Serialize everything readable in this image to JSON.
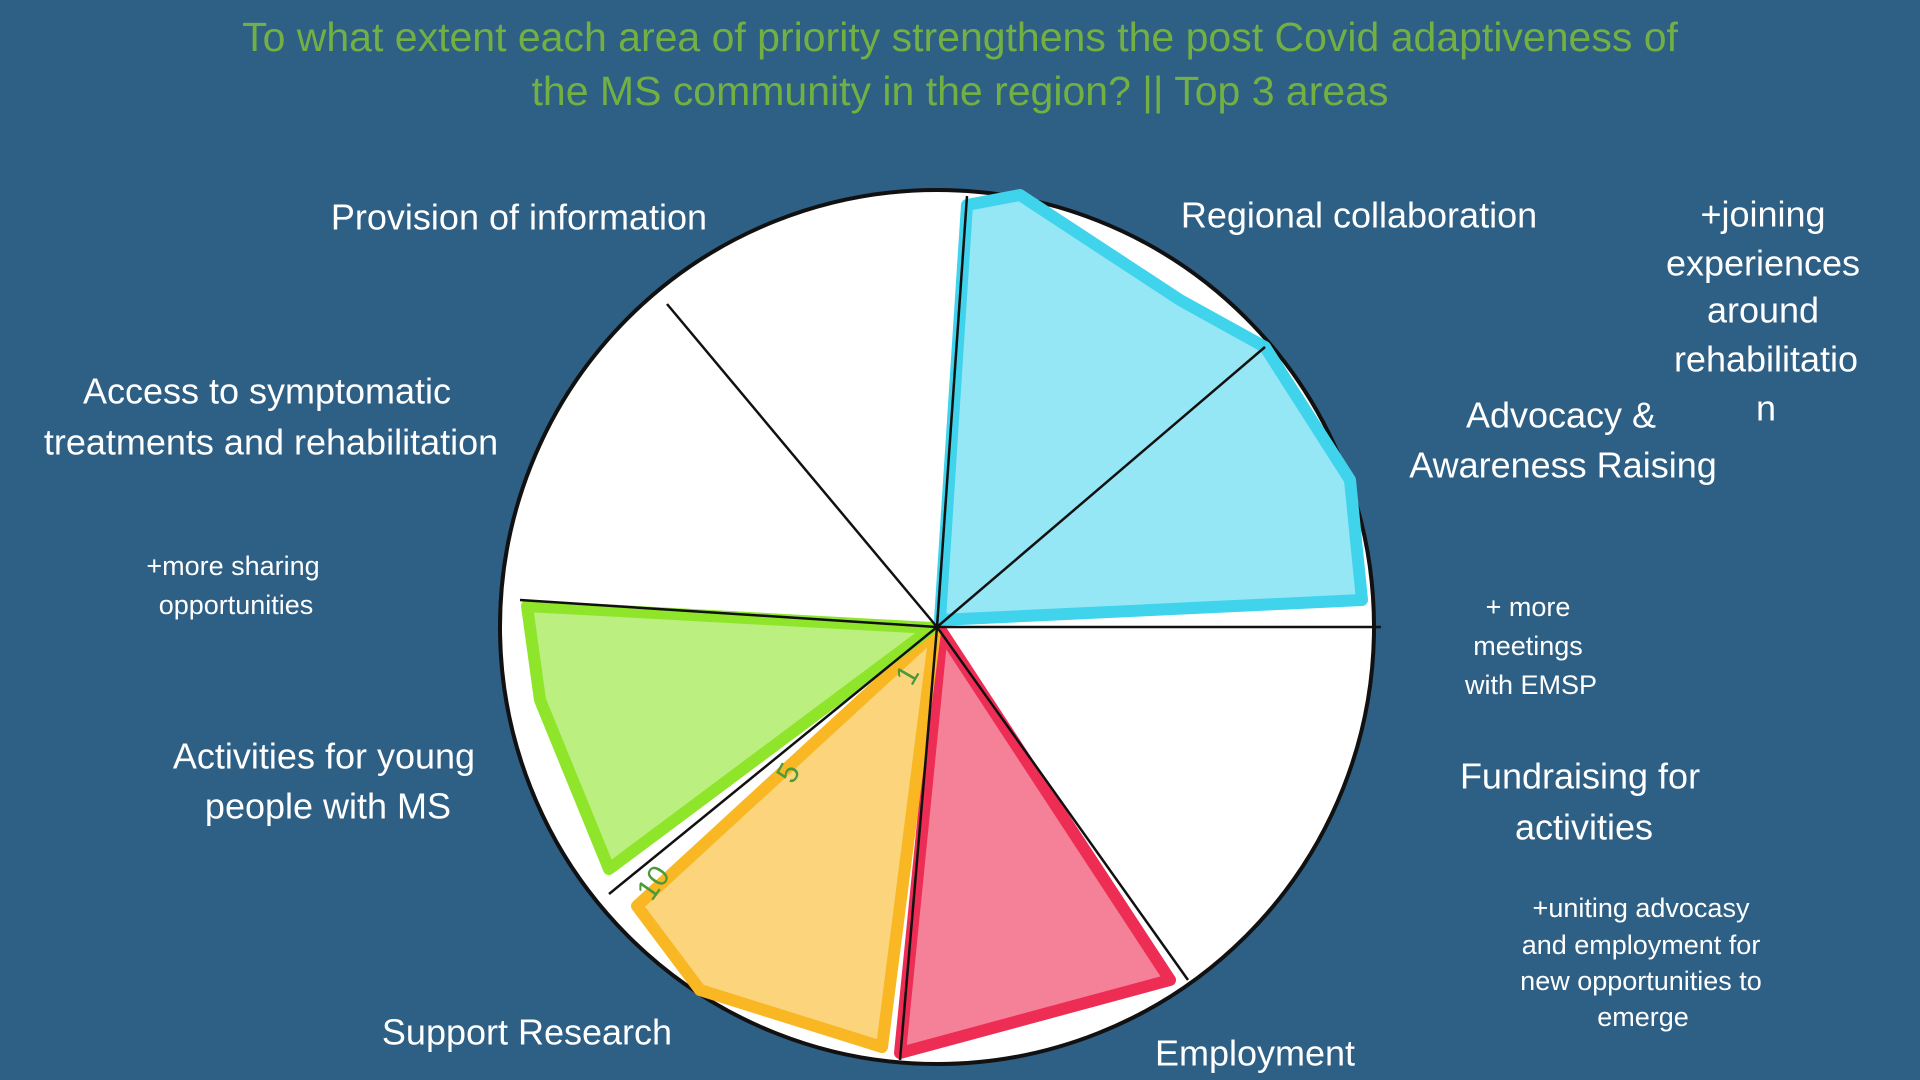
{
  "title": [
    "To what extent each area of priority strengthens the post Covid adaptiveness of",
    "the MS community in the region?  || Top 3 areas"
  ],
  "segments": [
    {
      "label": [
        "Provision of information"
      ]
    },
    {
      "label": [
        "Regional collaboration"
      ]
    },
    {
      "label": [
        "Advocacy &",
        "Awareness Raising"
      ]
    },
    {
      "label": [
        "Fundraising for",
        "activities"
      ]
    },
    {
      "label": [
        "Employment"
      ]
    },
    {
      "label": [
        "Support Research"
      ]
    },
    {
      "label": [
        "Activities for young",
        "people with MS"
      ]
    },
    {
      "label": [
        "Access to symptomatic",
        "treatments and rehabilitation"
      ]
    }
  ],
  "notes": [
    {
      "lines": [
        "+joining",
        "experiences",
        "around",
        "rehabilitatio",
        "n"
      ]
    },
    {
      "lines": [
        "+more sharing",
        "opportunities"
      ]
    },
    {
      "lines": [
        "+ more",
        "meetings",
        "with EMSP"
      ]
    },
    {
      "lines": [
        "+uniting advocasy",
        "and employment for",
        "new opportunities to",
        "emerge"
      ]
    }
  ],
  "scale_marks": [
    "1",
    "5",
    "10"
  ]
}
